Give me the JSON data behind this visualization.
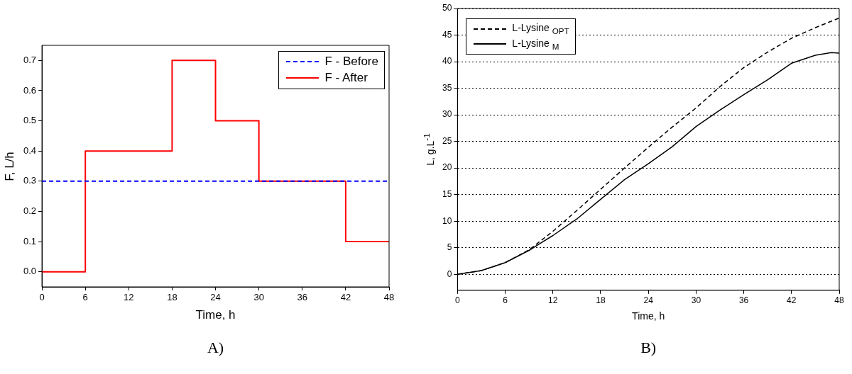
{
  "chart_data": [
    {
      "type": "step",
      "xlabel": "Time, h",
      "ylabel": "F, L/h",
      "annotations": [
        "A)"
      ],
      "series": [
        {
          "name": "F - Before",
          "color": "#0000ff",
          "type": "line",
          "line_style": "dashed",
          "x": [
            0,
            48
          ],
          "values": [
            0.3,
            0.3
          ]
        },
        {
          "name": "F - After",
          "color": "#ff0000",
          "line_style": "solid",
          "x": [
            0,
            6,
            18,
            24,
            30,
            42,
            48
          ],
          "values": [
            0,
            0.4,
            0.7,
            0.5,
            0.3,
            0.1,
            0.1
          ]
        }
      ],
      "xlim": [
        0,
        48
      ],
      "xticks": [
        0,
        6,
        12,
        18,
        24,
        30,
        36,
        42,
        48
      ],
      "ylim": [
        -0.05,
        0.75
      ],
      "yticks": [
        {
          "value": 0,
          "label": "0.0"
        },
        {
          "value": 0.1,
          "label": "0.1"
        },
        {
          "value": 0.2,
          "label": "0.2"
        },
        {
          "value": 0.3,
          "label": "0.3"
        },
        {
          "value": 0.4,
          "label": "0.4"
        },
        {
          "value": 0.5,
          "label": "0.5"
        },
        {
          "value": 0.6,
          "label": "0.6"
        },
        {
          "value": 0.7,
          "label": "0.7"
        }
      ],
      "grid": false,
      "legend": "top right",
      "marker": "none"
    },
    {
      "type": "line",
      "xlabel": "Time, h",
      "ylabel": "L, g.L$^{-1}$",
      "annotations": [
        "B)"
      ],
      "series": [
        {
          "name": "L-Lysine $_{OPT}$",
          "color": "#000000",
          "line_style": "dashed",
          "x": [
            0,
            3,
            6,
            9,
            12,
            15,
            18,
            21,
            24,
            27,
            30,
            33,
            36,
            39,
            42,
            45,
            48
          ],
          "values": [
            0,
            0.7,
            2.2,
            4.6,
            8.1,
            12,
            16,
            20,
            23.9,
            27.7,
            31.3,
            35.3,
            38.9,
            41.8,
            44.4,
            46.4,
            48.2
          ]
        },
        {
          "name": "L-Lysine $_{M}$",
          "color": "#000000",
          "line_style": "solid",
          "x": [
            0,
            3,
            6,
            9,
            12,
            15,
            18,
            21,
            24,
            27,
            30,
            33,
            36,
            39,
            42,
            45,
            47,
            48
          ],
          "values": [
            0,
            0.7,
            2.2,
            4.5,
            7.3,
            10.4,
            14.1,
            17.8,
            20.8,
            24,
            27.8,
            30.9,
            33.8,
            36.6,
            39.7,
            41.2,
            41.7,
            41.6
          ]
        }
      ],
      "xlim": [
        0,
        48
      ],
      "xticks": [
        0,
        6,
        12,
        18,
        24,
        30,
        36,
        42,
        48
      ],
      "ylim": [
        -3,
        50
      ],
      "yticks": [
        0,
        5,
        10,
        15,
        20,
        25,
        30,
        35,
        40,
        45,
        50
      ],
      "grid": "y",
      "legend": "top left",
      "marker": "none"
    }
  ]
}
